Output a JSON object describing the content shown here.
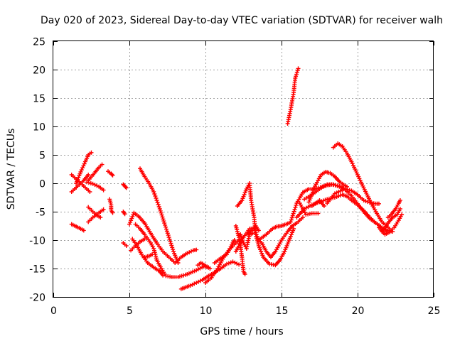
{
  "chart_data": {
    "type": "scatter",
    "title": "Day 020 of 2023, Sidereal Day-to-day VTEC variation (SDTVAR) for receiver walh",
    "xlabel": "GPS time / hours",
    "ylabel": "SDTVAR / TECUs",
    "xlim": [
      0,
      25
    ],
    "ylim": [
      -20,
      25
    ],
    "xticks": [
      0,
      5,
      10,
      15,
      20,
      25
    ],
    "yticks": [
      -20,
      -15,
      -10,
      -5,
      0,
      5,
      10,
      15,
      20,
      25
    ],
    "grid": true,
    "marker": "+",
    "color": "#ff0000",
    "tracks": [
      [
        [
          1.2,
          1.5
        ],
        [
          1.6,
          0.5
        ],
        [
          2.0,
          -0.5
        ],
        [
          2.4,
          -1.5
        ]
      ],
      [
        [
          1.2,
          -1.5
        ],
        [
          1.6,
          -0.5
        ],
        [
          2.0,
          0.5
        ],
        [
          2.3,
          1.5
        ]
      ],
      [
        [
          1.2,
          -7.2
        ],
        [
          1.5,
          -7.6
        ],
        [
          1.8,
          -8.0
        ],
        [
          2.0,
          -8.3
        ]
      ],
      [
        [
          1.5,
          0.0
        ],
        [
          1.8,
          2.0
        ],
        [
          2.1,
          3.8
        ],
        [
          2.3,
          5.0
        ],
        [
          2.5,
          5.4
        ]
      ],
      [
        [
          2.2,
          0.2
        ],
        [
          2.6,
          -0.1
        ],
        [
          3.0,
          -0.6
        ],
        [
          3.3,
          -1.2
        ]
      ],
      [
        [
          2.3,
          0.5
        ],
        [
          2.7,
          1.8
        ],
        [
          3.0,
          2.8
        ],
        [
          3.2,
          3.3
        ]
      ],
      [
        [
          2.3,
          -6.8
        ],
        [
          2.6,
          -6.0
        ],
        [
          3.0,
          -5.2
        ],
        [
          3.3,
          -4.6
        ]
      ],
      [
        [
          2.3,
          -4.2
        ],
        [
          2.6,
          -5.0
        ],
        [
          2.9,
          -5.7
        ],
        [
          3.1,
          -6.0
        ]
      ],
      [
        [
          3.6,
          2.1
        ],
        [
          3.8,
          1.7
        ],
        [
          3.9,
          1.4
        ]
      ],
      [
        [
          3.7,
          -2.8
        ],
        [
          3.8,
          -3.8
        ],
        [
          3.8,
          -4.7
        ],
        [
          3.9,
          -5.2
        ]
      ],
      [
        [
          4.6,
          -0.2
        ],
        [
          4.7,
          -0.5
        ],
        [
          4.8,
          -0.8
        ]
      ],
      [
        [
          4.6,
          -5.0
        ],
        [
          4.7,
          -5.4
        ]
      ],
      [
        [
          4.6,
          -10.5
        ],
        [
          4.8,
          -11.0
        ]
      ],
      [
        [
          5.0,
          -7.2
        ],
        [
          5.3,
          -5.2
        ],
        [
          5.6,
          -5.8
        ],
        [
          6.0,
          -7.0
        ],
        [
          6.4,
          -8.8
        ],
        [
          6.8,
          -10.5
        ],
        [
          7.2,
          -12.0
        ],
        [
          7.6,
          -13.0
        ],
        [
          8.0,
          -14.0
        ],
        [
          8.4,
          -13.0
        ],
        [
          8.8,
          -12.3
        ],
        [
          9.2,
          -11.8
        ],
        [
          9.4,
          -11.7
        ]
      ],
      [
        [
          5.2,
          -9.8
        ],
        [
          5.5,
          -11.0
        ],
        [
          5.8,
          -12.5
        ],
        [
          6.2,
          -14.0
        ],
        [
          6.6,
          -14.8
        ],
        [
          7.0,
          -15.5
        ],
        [
          7.2,
          -16.2
        ]
      ],
      [
        [
          5.1,
          -11.8
        ],
        [
          5.4,
          -11.0
        ],
        [
          5.7,
          -10.3
        ],
        [
          6.0,
          -9.8
        ]
      ],
      [
        [
          5.4,
          -7.2
        ],
        [
          5.7,
          -8.0
        ],
        [
          6.0,
          -9.0
        ],
        [
          6.4,
          -10.5
        ],
        [
          6.6,
          -11.5
        ],
        [
          6.8,
          -13.5
        ],
        [
          7.1,
          -15.0
        ],
        [
          7.4,
          -16.3
        ],
        [
          7.8,
          -16.5
        ],
        [
          8.2,
          -16.5
        ],
        [
          8.8,
          -16.0
        ],
        [
          9.4,
          -15.3
        ],
        [
          9.9,
          -14.6
        ],
        [
          10.2,
          -14.8
        ]
      ],
      [
        [
          6.0,
          -13.0
        ],
        [
          6.3,
          -12.8
        ],
        [
          6.5,
          -12.5
        ]
      ],
      [
        [
          5.7,
          2.6
        ],
        [
          6.0,
          1.2
        ],
        [
          6.3,
          0.0
        ],
        [
          6.6,
          -1.5
        ],
        [
          7.0,
          -4.5
        ],
        [
          7.3,
          -7.0
        ],
        [
          7.6,
          -9.5
        ],
        [
          7.9,
          -12.0
        ],
        [
          8.2,
          -14.0
        ]
      ],
      [
        [
          8.4,
          -18.6
        ],
        [
          8.7,
          -18.3
        ],
        [
          9.0,
          -18.0
        ],
        [
          9.4,
          -17.5
        ],
        [
          9.8,
          -17.0
        ],
        [
          10.2,
          -16.3
        ],
        [
          10.6,
          -15.7
        ],
        [
          11.0,
          -15.0
        ],
        [
          11.4,
          -14.2
        ],
        [
          11.8,
          -13.8
        ],
        [
          12.2,
          -14.3
        ]
      ],
      [
        [
          9.5,
          -14.4
        ],
        [
          9.7,
          -14.0
        ],
        [
          10.0,
          -14.5
        ],
        [
          10.3,
          -15.0
        ]
      ],
      [
        [
          10.0,
          -17.5
        ],
        [
          10.4,
          -16.6
        ],
        [
          10.8,
          -15.0
        ],
        [
          11.2,
          -13.0
        ],
        [
          11.6,
          -11.6
        ],
        [
          12.0,
          -10.5
        ],
        [
          12.2,
          -10.0
        ]
      ],
      [
        [
          10.6,
          -14.0
        ],
        [
          11.0,
          -13.2
        ],
        [
          11.4,
          -12.5
        ],
        [
          11.6,
          -11.5
        ],
        [
          11.8,
          -10.5
        ],
        [
          11.9,
          -10.0
        ]
      ],
      [
        [
          12.0,
          -12.0
        ],
        [
          12.5,
          -9.5
        ],
        [
          12.9,
          -8.0
        ],
        [
          13.2,
          -8.0
        ],
        [
          13.5,
          -10.0
        ],
        [
          13.7,
          -10.5
        ],
        [
          14.0,
          -12.0
        ],
        [
          14.3,
          -13.0
        ],
        [
          14.6,
          -12.0
        ],
        [
          15.0,
          -10.0
        ],
        [
          15.4,
          -8.5
        ],
        [
          15.7,
          -7.5
        ],
        [
          16.0,
          -7.0
        ],
        [
          16.4,
          -6.0
        ]
      ],
      [
        [
          12.1,
          -4.0
        ],
        [
          12.4,
          -3.0
        ],
        [
          12.7,
          -1.0
        ],
        [
          12.9,
          0.0
        ],
        [
          13.0,
          -3.0
        ],
        [
          13.2,
          -6.0
        ],
        [
          13.3,
          -9.0
        ],
        [
          13.5,
          -11.0
        ],
        [
          13.8,
          -13.0
        ],
        [
          14.2,
          -14.2
        ],
        [
          14.6,
          -14.4
        ],
        [
          14.9,
          -13.5
        ],
        [
          15.2,
          -12.0
        ],
        [
          15.5,
          -10.0
        ],
        [
          15.8,
          -8.0
        ]
      ],
      [
        [
          12.0,
          -7.5
        ],
        [
          12.2,
          -9.5
        ],
        [
          12.3,
          -11.0
        ],
        [
          12.4,
          -13.0
        ],
        [
          12.5,
          -15.5
        ],
        [
          12.6,
          -16.0
        ]
      ],
      [
        [
          12.8,
          -9.0
        ],
        [
          13.0,
          -8.3
        ],
        [
          13.3,
          -7.5
        ],
        [
          13.5,
          -8.3
        ]
      ],
      [
        [
          12.3,
          -9.0
        ],
        [
          12.5,
          -10.5
        ],
        [
          12.7,
          -11.5
        ],
        [
          12.9,
          -9.0
        ],
        [
          13.1,
          -8.8
        ]
      ],
      [
        [
          13.6,
          -9.8
        ],
        [
          14.0,
          -9.0
        ],
        [
          14.4,
          -8.0
        ],
        [
          14.7,
          -7.6
        ],
        [
          15.0,
          -7.5
        ],
        [
          15.3,
          -7.2
        ],
        [
          15.5,
          -7.0
        ]
      ],
      [
        [
          15.4,
          10.5
        ],
        [
          15.6,
          13.0
        ],
        [
          15.8,
          16.0
        ],
        [
          15.9,
          18.5
        ],
        [
          16.1,
          20.2
        ]
      ],
      [
        [
          15.6,
          -6.8
        ],
        [
          16.0,
          -3.5
        ],
        [
          16.4,
          -1.6
        ],
        [
          16.8,
          -1.0
        ],
        [
          17.2,
          -1.0
        ],
        [
          17.8,
          -0.5
        ],
        [
          18.3,
          -0.2
        ],
        [
          18.8,
          -0.5
        ],
        [
          19.2,
          -1.2
        ],
        [
          19.6,
          -2.2
        ],
        [
          20.0,
          -3.6
        ],
        [
          20.4,
          -5.0
        ],
        [
          20.8,
          -6.2
        ],
        [
          21.2,
          -7.0
        ],
        [
          21.6,
          -7.8
        ],
        [
          22.0,
          -8.3
        ],
        [
          22.3,
          -8.5
        ]
      ],
      [
        [
          16.0,
          -6.0
        ],
        [
          16.5,
          -4.5
        ],
        [
          17.0,
          -3.8
        ],
        [
          17.5,
          -3.3
        ],
        [
          18.0,
          -2.8
        ],
        [
          18.5,
          -2.5
        ],
        [
          19.0,
          -2.0
        ],
        [
          19.3,
          -2.3
        ],
        [
          19.6,
          -3.0
        ],
        [
          20.0,
          -3.8
        ],
        [
          20.4,
          -4.8
        ],
        [
          20.8,
          -6.0
        ],
        [
          21.2,
          -7.0
        ],
        [
          21.6,
          -7.8
        ],
        [
          21.9,
          -8.5
        ]
      ],
      [
        [
          16.5,
          -2.8
        ],
        [
          17.0,
          -2.0
        ],
        [
          17.5,
          -1.0
        ],
        [
          18.0,
          -0.2
        ],
        [
          18.4,
          -0.2
        ],
        [
          18.8,
          -0.6
        ],
        [
          19.2,
          -1.0
        ],
        [
          19.6,
          -1.3
        ],
        [
          20.0,
          -2.0
        ],
        [
          20.4,
          -3.0
        ],
        [
          20.8,
          -3.4
        ],
        [
          21.2,
          -3.6
        ],
        [
          21.4,
          -3.6
        ]
      ],
      [
        [
          16.2,
          -3.5
        ],
        [
          16.6,
          -5.5
        ],
        [
          17.0,
          -5.3
        ],
        [
          17.4,
          -5.3
        ]
      ],
      [
        [
          17.0,
          -4.0
        ],
        [
          17.5,
          -3.0
        ],
        [
          17.8,
          -4.0
        ]
      ],
      [
        [
          18.0,
          -3.5
        ],
        [
          18.5,
          -1.8
        ],
        [
          19.0,
          -1.2
        ]
      ],
      [
        [
          16.8,
          -3.3
        ],
        [
          17.2,
          -0.5
        ],
        [
          17.6,
          1.5
        ],
        [
          17.9,
          2.0
        ],
        [
          18.2,
          1.8
        ],
        [
          18.5,
          1.2
        ],
        [
          18.8,
          0.3
        ],
        [
          19.1,
          -0.3
        ],
        [
          19.3,
          -0.6
        ]
      ],
      [
        [
          18.4,
          6.3
        ],
        [
          18.7,
          7.0
        ],
        [
          19.0,
          6.5
        ],
        [
          19.3,
          5.3
        ],
        [
          19.6,
          3.8
        ],
        [
          20.0,
          1.5
        ],
        [
          20.4,
          -0.8
        ],
        [
          20.8,
          -3.0
        ],
        [
          21.2,
          -5.0
        ],
        [
          21.6,
          -6.8
        ],
        [
          21.9,
          -7.5
        ],
        [
          22.1,
          -8.0
        ]
      ],
      [
        [
          21.4,
          -7.8
        ],
        [
          21.8,
          -9.0
        ],
        [
          22.1,
          -8.6
        ],
        [
          22.4,
          -7.8
        ],
        [
          22.7,
          -6.5
        ],
        [
          22.9,
          -5.5
        ]
      ],
      [
        [
          21.6,
          -8.5
        ],
        [
          22.0,
          -7.0
        ],
        [
          22.3,
          -6.0
        ],
        [
          22.6,
          -5.5
        ],
        [
          22.8,
          -4.5
        ]
      ],
      [
        [
          22.0,
          -6.0
        ],
        [
          22.2,
          -5.5
        ],
        [
          22.5,
          -4.5
        ],
        [
          22.7,
          -3.5
        ],
        [
          22.8,
          -3.0
        ]
      ]
    ]
  }
}
